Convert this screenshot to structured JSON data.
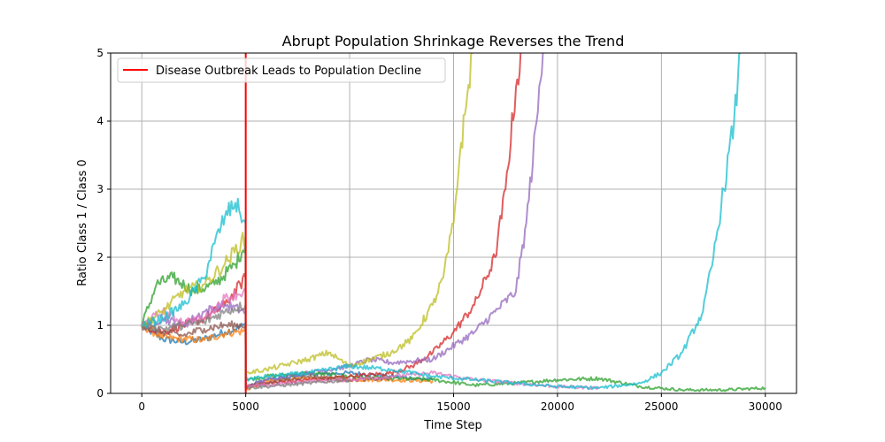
{
  "chart_data": {
    "type": "line",
    "title": "Abrupt Population Shrinkage Reverses the Trend",
    "xlabel": "Time Step",
    "ylabel": "Ratio Class 1 / Class 0",
    "xlim": [
      -1500,
      31500
    ],
    "ylim": [
      0,
      5
    ],
    "xticks": [
      0,
      5000,
      10000,
      15000,
      20000,
      25000,
      30000
    ],
    "yticks": [
      0,
      1,
      2,
      3,
      4,
      5
    ],
    "grid": true,
    "legend_position": "top-left",
    "event_line": {
      "x": 5000,
      "label": "Disease Outbreak Leads to Population Decline",
      "color": "#ff0000"
    },
    "series": [
      {
        "color": "#1f77b4",
        "x": [
          0,
          1000,
          2000,
          3000,
          4000,
          4990,
          5000,
          6000,
          8000,
          10000,
          12000,
          14000
        ],
        "y": [
          1.0,
          0.8,
          0.75,
          0.8,
          0.9,
          1.0,
          0.1,
          0.2,
          0.28,
          0.3,
          0.25,
          0.2
        ]
      },
      {
        "color": "#ff7f0e",
        "x": [
          0,
          1000,
          2000,
          3000,
          4000,
          4990,
          5000,
          6000,
          8000,
          10000,
          12000,
          14000
        ],
        "y": [
          1.0,
          0.82,
          0.8,
          0.78,
          0.88,
          0.92,
          0.05,
          0.18,
          0.22,
          0.2,
          0.2,
          0.18
        ]
      },
      {
        "color": "#2ca02c",
        "x": [
          0,
          700,
          1500,
          2500,
          3500,
          4500,
          4990,
          5000,
          6000,
          8000,
          10000,
          12000,
          14000,
          16000,
          18000,
          20000,
          22000,
          24000,
          26000,
          28000,
          30000
        ],
        "y": [
          1.0,
          1.6,
          1.7,
          1.5,
          1.6,
          1.9,
          2.2,
          0.2,
          0.25,
          0.3,
          0.25,
          0.22,
          0.2,
          0.12,
          0.15,
          0.2,
          0.22,
          0.1,
          0.05,
          0.05,
          0.08
        ]
      },
      {
        "color": "#d62728",
        "x": [
          0,
          1000,
          2000,
          3000,
          4000,
          4990,
          5000,
          6000,
          8000,
          10000,
          12000,
          13000,
          14000,
          15000,
          16000,
          17000,
          17500,
          18000,
          18300
        ],
        "y": [
          1.0,
          0.9,
          1.0,
          1.1,
          1.3,
          1.7,
          0.1,
          0.15,
          0.2,
          0.25,
          0.3,
          0.4,
          0.6,
          0.9,
          1.3,
          2.0,
          3.0,
          4.5,
          5.0
        ]
      },
      {
        "color": "#9467bd",
        "x": [
          0,
          1000,
          2000,
          3000,
          4000,
          4990,
          5000,
          6000,
          8000,
          10000,
          11000,
          12000,
          14000,
          16000,
          17000,
          18000,
          18500,
          19000,
          19300
        ],
        "y": [
          1.0,
          1.1,
          1.0,
          1.2,
          1.3,
          1.2,
          0.1,
          0.2,
          0.3,
          0.4,
          0.5,
          0.45,
          0.5,
          0.9,
          1.2,
          1.5,
          2.5,
          4.0,
          5.0
        ]
      },
      {
        "color": "#8c564b",
        "x": [
          0,
          1000,
          2000,
          3000,
          4000,
          4990,
          5000,
          6000,
          8000,
          10000,
          12000
        ],
        "y": [
          1.0,
          0.9,
          0.85,
          0.95,
          1.0,
          1.0,
          0.1,
          0.15,
          0.25,
          0.2,
          0.22
        ]
      },
      {
        "color": "#e377c2",
        "x": [
          0,
          1000,
          2000,
          3000,
          4000,
          4990,
          5000,
          6000,
          8000,
          10000,
          12000,
          14000,
          16000,
          18000,
          20000,
          22000
        ],
        "y": [
          1.0,
          1.2,
          1.05,
          1.1,
          1.4,
          1.5,
          0.1,
          0.12,
          0.18,
          0.2,
          0.25,
          0.3,
          0.2,
          0.15,
          0.1,
          0.08
        ]
      },
      {
        "color": "#7f7f7f",
        "x": [
          0,
          1000,
          2000,
          3000,
          4000,
          4990,
          5000,
          6000,
          8000,
          10000
        ],
        "y": [
          1.0,
          0.95,
          1.0,
          1.05,
          1.2,
          1.3,
          0.08,
          0.1,
          0.15,
          0.2
        ]
      },
      {
        "color": "#bcbd22",
        "x": [
          0,
          1000,
          2000,
          3000,
          4000,
          4990,
          5000,
          6000,
          8000,
          9000,
          10000,
          11000,
          12000,
          13000,
          14000,
          14500,
          15000,
          15300,
          15600,
          15900
        ],
        "y": [
          1.0,
          1.2,
          1.5,
          1.6,
          1.9,
          2.3,
          0.3,
          0.35,
          0.5,
          0.6,
          0.4,
          0.5,
          0.6,
          0.8,
          1.3,
          1.7,
          2.5,
          3.5,
          4.2,
          5.0
        ]
      },
      {
        "color": "#17becf",
        "x": [
          0,
          1000,
          2000,
          3000,
          3500,
          4000,
          4500,
          4990,
          5000,
          6000,
          8000,
          10000,
          12000,
          14000,
          16000,
          18000,
          20000,
          22000,
          24000,
          25000,
          26000,
          27000,
          27500,
          28000,
          28500,
          28800
        ],
        "y": [
          1.0,
          1.1,
          1.3,
          1.7,
          2.2,
          2.6,
          2.8,
          2.5,
          0.2,
          0.25,
          0.3,
          0.4,
          0.35,
          0.25,
          0.2,
          0.15,
          0.1,
          0.08,
          0.15,
          0.3,
          0.6,
          1.2,
          2.0,
          3.0,
          4.0,
          5.0
        ]
      }
    ]
  }
}
